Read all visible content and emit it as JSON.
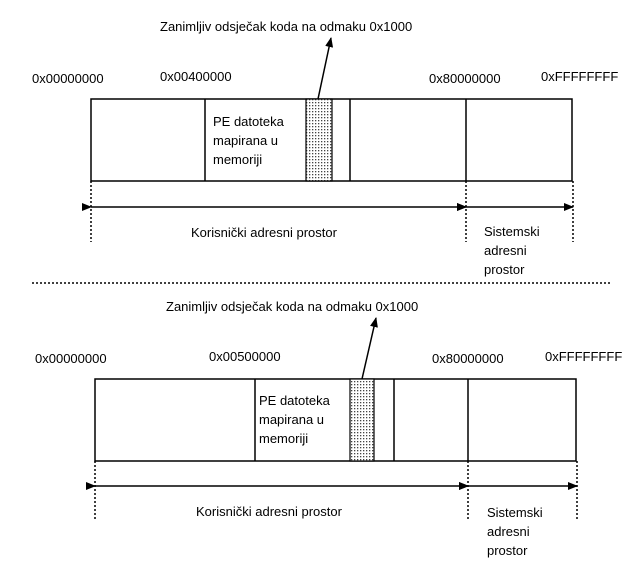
{
  "diagrams": [
    {
      "annotation": "Zanimljiv odsječak koda na odmaku 0x1000",
      "addresses": {
        "start": "0x00000000",
        "pe_base": "0x00400000",
        "kernel_start": "0x80000000",
        "end": "0xFFFFFFFF"
      },
      "pe_block_label": "PE datoteka mapirana u memoriji",
      "user_space_label": "Korisnički adresni prostor",
      "system_space_label": "Sistemski adresni prostor"
    },
    {
      "annotation": "Zanimljiv odsječak koda na odmaku 0x1000",
      "addresses": {
        "start": "0x00000000",
        "pe_base": "0x00500000",
        "kernel_start": "0x80000000",
        "end": "0xFFFFFFFF"
      },
      "pe_block_label": "PE datoteka mapirana u memoriji",
      "user_space_label": "Korisnički adresni prostor",
      "system_space_label": "Sistemski adresni prostor"
    }
  ]
}
